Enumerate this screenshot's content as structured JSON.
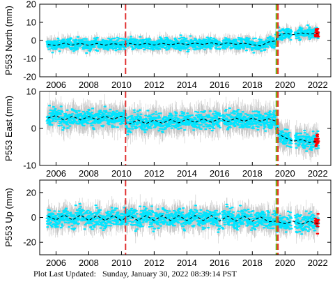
{
  "footer": {
    "label": "Plot Last Updated:",
    "timestamp": "Sunday, January 30, 2022 08:39:14 PST"
  },
  "colors": {
    "raw_points": "#00e5ff",
    "error_bars": "#b8b8b8",
    "model_line": "#000000",
    "recent_points": "#ff0000",
    "event_red": "#e03030",
    "event_green": "#2a9d2a",
    "event_yellow": "#d4b000"
  },
  "chart_data": [
    {
      "type": "scatter",
      "ylabel": "P553 North (mm)",
      "xlim": [
        2005.0,
        2022.8
      ],
      "ylim": [
        -20,
        20
      ],
      "yticks": [
        -20,
        -10,
        0,
        10,
        20
      ],
      "xticks": [
        2006,
        2008,
        2010,
        2012,
        2014,
        2016,
        2018,
        2020,
        2022
      ],
      "grid": false,
      "series": [
        {
          "kind": "model_trend",
          "points": [
            [
              2005.5,
              -2.2
            ],
            [
              2006.0,
              -2.8
            ],
            [
              2006.5,
              -1.5
            ],
            [
              2007.0,
              -2.5
            ],
            [
              2007.5,
              -1.6
            ],
            [
              2008.0,
              -2.7
            ],
            [
              2008.5,
              -1.6
            ],
            [
              2009.0,
              -2.6
            ],
            [
              2009.5,
              -1.7
            ],
            [
              2010.0,
              -2.4
            ],
            [
              2010.25,
              -2.0
            ],
            [
              2010.5,
              -1.6
            ],
            [
              2011.0,
              -2.5
            ],
            [
              2011.5,
              -1.6
            ],
            [
              2012.0,
              -2.5
            ],
            [
              2012.5,
              -1.6
            ],
            [
              2013.0,
              -2.4
            ],
            [
              2013.5,
              -1.5
            ],
            [
              2014.0,
              -2.3
            ],
            [
              2014.5,
              -1.4
            ],
            [
              2015.0,
              -2.2
            ],
            [
              2015.5,
              -1.3
            ],
            [
              2016.0,
              -2.2
            ],
            [
              2016.5,
              -1.3
            ],
            [
              2017.0,
              -2.1
            ],
            [
              2017.5,
              -1.5
            ],
            [
              2018.0,
              -2.3
            ],
            [
              2018.5,
              -3.0
            ],
            [
              2019.0,
              -0.8
            ],
            [
              2019.45,
              -0.2
            ],
            [
              2019.55,
              2.5
            ],
            [
              2020.0,
              4.0
            ],
            [
              2020.5,
              3.2
            ],
            [
              2021.0,
              4.2
            ],
            [
              2021.5,
              3.5
            ],
            [
              2022.0,
              4.0
            ]
          ]
        }
      ],
      "events": [
        {
          "x": 2010.25,
          "color": "event_red"
        },
        {
          "x": 2019.47,
          "color": "event_green"
        },
        {
          "x": 2019.52,
          "color": "event_yellow"
        },
        {
          "x": 2019.57,
          "color": "event_red"
        }
      ]
    },
    {
      "type": "scatter",
      "ylabel": "P553 East (mm)",
      "xlim": [
        2005.0,
        2022.8
      ],
      "ylim": [
        -10,
        10
      ],
      "yticks": [
        -10,
        0,
        10
      ],
      "xticks": [
        2006,
        2008,
        2010,
        2012,
        2014,
        2016,
        2018,
        2020,
        2022
      ],
      "grid": false,
      "series": [
        {
          "kind": "model_trend",
          "points": [
            [
              2005.5,
              2.8
            ],
            [
              2006.0,
              3.5
            ],
            [
              2006.5,
              2.2
            ],
            [
              2007.0,
              3.3
            ],
            [
              2007.5,
              2.3
            ],
            [
              2008.0,
              3.2
            ],
            [
              2008.5,
              2.4
            ],
            [
              2009.0,
              3.3
            ],
            [
              2009.5,
              2.5
            ],
            [
              2010.0,
              3.3
            ],
            [
              2010.24,
              3.0
            ],
            [
              2010.26,
              1.5
            ],
            [
              2010.5,
              1.2
            ],
            [
              2011.0,
              2.3
            ],
            [
              2011.5,
              1.3
            ],
            [
              2012.0,
              2.3
            ],
            [
              2012.5,
              1.4
            ],
            [
              2013.0,
              2.4
            ],
            [
              2013.5,
              1.5
            ],
            [
              2014.0,
              2.5
            ],
            [
              2014.5,
              1.6
            ],
            [
              2015.0,
              2.6
            ],
            [
              2015.5,
              1.7
            ],
            [
              2016.0,
              2.7
            ],
            [
              2016.5,
              1.8
            ],
            [
              2017.0,
              2.8
            ],
            [
              2017.5,
              1.9
            ],
            [
              2018.0,
              2.8
            ],
            [
              2018.5,
              2.0
            ],
            [
              2019.0,
              2.6
            ],
            [
              2019.45,
              2.0
            ],
            [
              2019.6,
              -1.5
            ],
            [
              2020.0,
              -2.5
            ],
            [
              2020.5,
              -3.5
            ],
            [
              2021.0,
              -3.0
            ],
            [
              2021.5,
              -3.8
            ],
            [
              2022.0,
              -3.4
            ]
          ]
        }
      ],
      "events": [
        {
          "x": 2010.25,
          "color": "event_red"
        },
        {
          "x": 2019.47,
          "color": "event_green"
        },
        {
          "x": 2019.52,
          "color": "event_yellow"
        },
        {
          "x": 2019.57,
          "color": "event_red"
        }
      ]
    },
    {
      "type": "scatter",
      "ylabel": "P553 Up (mm)",
      "xlim": [
        2005.0,
        2022.8
      ],
      "ylim": [
        -30,
        30
      ],
      "yticks": [
        -20,
        0,
        20
      ],
      "xticks": [
        2006,
        2008,
        2010,
        2012,
        2014,
        2016,
        2018,
        2020,
        2022
      ],
      "grid": false,
      "series": [
        {
          "kind": "model_trend",
          "points": [
            [
              2005.5,
              1.0
            ],
            [
              2006.0,
              -2.0
            ],
            [
              2006.5,
              2.0
            ],
            [
              2007.0,
              -2.0
            ],
            [
              2007.5,
              2.0
            ],
            [
              2008.0,
              -2.5
            ],
            [
              2008.5,
              1.5
            ],
            [
              2009.0,
              -2.5
            ],
            [
              2009.5,
              1.5
            ],
            [
              2010.0,
              -2.5
            ],
            [
              2010.5,
              1.5
            ],
            [
              2011.0,
              -2.5
            ],
            [
              2011.5,
              1.5
            ],
            [
              2012.0,
              -2.5
            ],
            [
              2012.5,
              1.5
            ],
            [
              2013.0,
              -2.5
            ],
            [
              2013.5,
              1.5
            ],
            [
              2014.0,
              -2.5
            ],
            [
              2014.5,
              1.5
            ],
            [
              2015.0,
              -2.5
            ],
            [
              2015.5,
              1.5
            ],
            [
              2016.0,
              -3.0
            ],
            [
              2016.5,
              1.0
            ],
            [
              2017.0,
              -3.0
            ],
            [
              2017.5,
              1.0
            ],
            [
              2018.0,
              -3.0
            ],
            [
              2018.5,
              0.5
            ],
            [
              2019.0,
              -3.5
            ],
            [
              2019.45,
              -3.0
            ],
            [
              2020.0,
              -5.0
            ],
            [
              2020.5,
              -3.0
            ],
            [
              2021.0,
              -5.5
            ],
            [
              2021.5,
              -3.0
            ],
            [
              2022.0,
              -5.0
            ]
          ]
        }
      ],
      "events": [
        {
          "x": 2010.25,
          "color": "event_red"
        },
        {
          "x": 2019.47,
          "color": "event_green"
        },
        {
          "x": 2019.52,
          "color": "event_yellow"
        },
        {
          "x": 2019.57,
          "color": "event_red"
        }
      ]
    }
  ]
}
